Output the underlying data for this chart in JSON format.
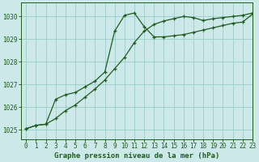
{
  "title": "Graphe pression niveau de la mer (hPa)",
  "bg_color": "#cce8e8",
  "grid_color": "#99cccc",
  "line_color": "#1e5c1e",
  "ylim": [
    1024.6,
    1030.6
  ],
  "xlim": [
    -0.5,
    23
  ],
  "yticks": [
    1025,
    1026,
    1027,
    1028,
    1029,
    1030
  ],
  "xticks": [
    0,
    1,
    2,
    3,
    4,
    5,
    6,
    7,
    8,
    9,
    10,
    11,
    12,
    13,
    14,
    15,
    16,
    17,
    18,
    19,
    20,
    21,
    22,
    23
  ],
  "line1_x": [
    0,
    1,
    2,
    3,
    4,
    5,
    6,
    7,
    8,
    9,
    10,
    11,
    12,
    13,
    14,
    15,
    16,
    17,
    18,
    19,
    20,
    21,
    22,
    23
  ],
  "line1_y": [
    1025.05,
    1025.2,
    1025.25,
    1025.5,
    1025.85,
    1026.1,
    1026.45,
    1026.8,
    1027.2,
    1027.7,
    1028.2,
    1028.85,
    1029.35,
    1029.65,
    1029.8,
    1029.9,
    1030.0,
    1029.95,
    1029.82,
    1029.9,
    1029.95,
    1030.0,
    1030.05,
    1030.15
  ],
  "line2_x": [
    0,
    1,
    2,
    3,
    4,
    5,
    6,
    7,
    8,
    9,
    10,
    11,
    12,
    13,
    14,
    15,
    16,
    17,
    18,
    19,
    20,
    21,
    22,
    23
  ],
  "line2_y": [
    1025.05,
    1025.2,
    1025.25,
    1026.35,
    1026.55,
    1026.65,
    1026.9,
    1027.15,
    1027.55,
    1029.35,
    1030.05,
    1030.15,
    1029.55,
    1029.1,
    1029.1,
    1029.15,
    1029.2,
    1029.3,
    1029.4,
    1029.5,
    1029.6,
    1029.7,
    1029.75,
    1030.1
  ],
  "title_fontsize": 6.5,
  "tick_fontsize": 5.5
}
